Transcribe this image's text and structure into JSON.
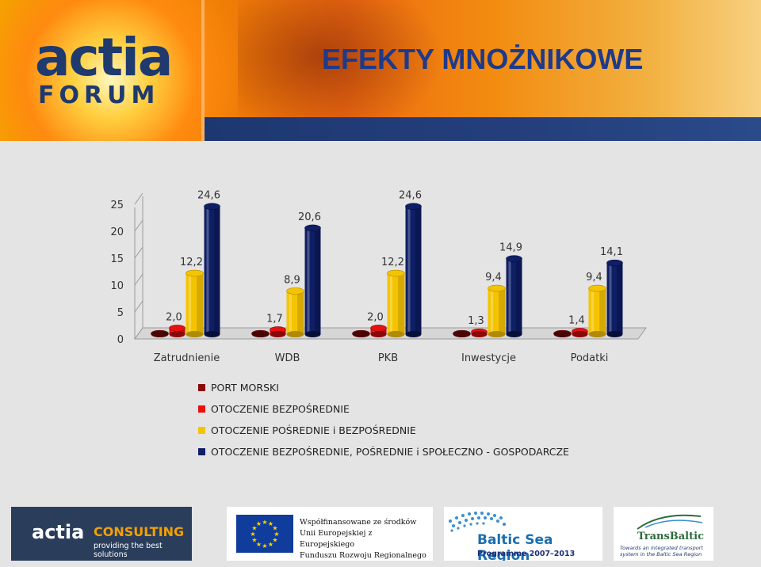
{
  "slide": {
    "title": "EFEKTY MNOŻNIKOWE"
  },
  "logo": {
    "word": "actia",
    "forum": "FORUM"
  },
  "colors": {
    "port_morski": "#8a0a0a",
    "otoczenie_bezposrednie": "#e81010",
    "otoczenie_posrednie": "#f5c400",
    "otoczenie_spoleczno": "#0f1f66",
    "title": "#1e3a8a"
  },
  "chart_data": {
    "type": "bar",
    "categories": [
      "Zatrudnienie",
      "WDB",
      "PKB",
      "Inwestycje",
      "Podatki"
    ],
    "series": [
      {
        "name": "PORT MORSKI",
        "values": [
          1.0,
          1.0,
          1.0,
          1.0,
          1.0
        ],
        "labels": [
          "",
          "",
          "",
          "",
          ""
        ]
      },
      {
        "name": "OTOCZENIE BEZPOŚREDNIE",
        "values": [
          2.0,
          1.7,
          2.0,
          1.3,
          1.4
        ],
        "labels": [
          "2,0",
          "1,7",
          "2,0",
          "1,3",
          "1,4"
        ]
      },
      {
        "name": "OTOCZENIE POŚREDNIE i BEZPOŚREDNIE",
        "values": [
          12.2,
          8.9,
          12.2,
          9.4,
          9.4
        ],
        "labels": [
          "12,2",
          "8,9",
          "12,2",
          "9,4",
          "9,4"
        ]
      },
      {
        "name": "OTOCZENIE BEZPOŚREDNIE, POŚREDNIE i SPOŁECZNO - GOSPODARCZE",
        "values": [
          24.6,
          20.6,
          24.6,
          14.9,
          14.1
        ],
        "labels": [
          "24,6",
          "20,6",
          "24,6",
          "14,9",
          "14,1"
        ]
      }
    ],
    "yticks": [
      "0",
      "5",
      "10",
      "15",
      "20",
      "25"
    ],
    "ylim": [
      0,
      25
    ],
    "legend": "bottom"
  },
  "footer": {
    "consulting": {
      "word": "actia",
      "name": "CONSULTING",
      "tagline": "providing the best solutions"
    },
    "eu": {
      "line1": "Współfinansowane ze środków",
      "line2": "Unii Europejskiej z Europejskiego",
      "line3": "Funduszu Rozwoju Regionalnego"
    },
    "baltic": {
      "name": "Baltic Sea Region",
      "programme": "Programme 2007–2013"
    },
    "transbaltic": {
      "name": "TransBaltic",
      "tagline": "Towards an integrated transport system in the Baltic Sea Region"
    }
  }
}
